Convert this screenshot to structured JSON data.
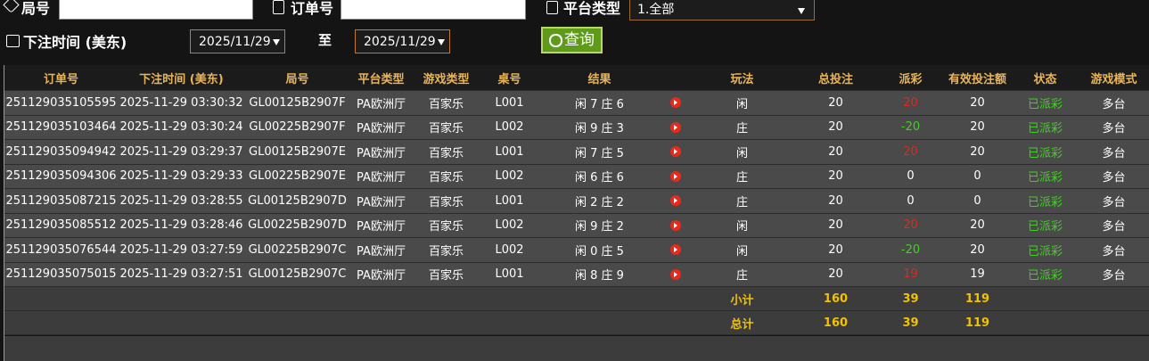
{
  "filters": {
    "round_label": "局号",
    "order_label": "订单号",
    "platform_label": "平台类型",
    "platform_value": "1.全部",
    "time_label": "下注时间 (美东)",
    "date_from": "2025/11/29",
    "to_label": "至",
    "date_to": "2025/11/29",
    "query_button": "查询"
  },
  "table": {
    "headers": [
      "订单号",
      "下注时间 (美东)",
      "局号",
      "平台类型",
      "游戏类型",
      "桌号",
      "结果",
      "玩法",
      "总投注",
      "派彩",
      "有效投注额",
      "状态",
      "游戏模式"
    ],
    "rows": [
      [
        "251129035105595",
        "2025-11-29 03:30:32",
        "GL00125B2907F",
        "PA欧洲厅",
        "百家乐",
        "L001",
        "闲 7 庄 6",
        "闲",
        20,
        20,
        20,
        "已派彩",
        "多台"
      ],
      [
        "251129035103464",
        "2025-11-29 03:30:24",
        "GL00225B2907F",
        "PA欧洲厅",
        "百家乐",
        "L002",
        "闲 9 庄 3",
        "庄",
        20,
        -20,
        20,
        "已派彩",
        "多台"
      ],
      [
        "251129035094942",
        "2025-11-29 03:29:37",
        "GL00125B2907E",
        "PA欧洲厅",
        "百家乐",
        "L001",
        "闲 7 庄 5",
        "闲",
        20,
        20,
        20,
        "已派彩",
        "多台"
      ],
      [
        "251129035094306",
        "2025-11-29 03:29:33",
        "GL00225B2907E",
        "PA欧洲厅",
        "百家乐",
        "L002",
        "闲 6 庄 6",
        "庄",
        20,
        0,
        0,
        "已派彩",
        "多台"
      ],
      [
        "251129035087215",
        "2025-11-29 03:28:55",
        "GL00125B2907D",
        "PA欧洲厅",
        "百家乐",
        "L001",
        "闲 2 庄 2",
        "庄",
        20,
        0,
        0,
        "已派彩",
        "多台"
      ],
      [
        "251129035085512",
        "2025-11-29 03:28:46",
        "GL00225B2907D",
        "PA欧洲厅",
        "百家乐",
        "L002",
        "闲 9 庄 2",
        "闲",
        20,
        20,
        20,
        "已派彩",
        "多台"
      ],
      [
        "251129035076544",
        "2025-11-29 03:27:59",
        "GL00225B2907C",
        "PA欧洲厅",
        "百家乐",
        "L002",
        "闲 0 庄 5",
        "闲",
        20,
        -20,
        20,
        "已派彩",
        "多台"
      ],
      [
        "251129035075015",
        "2025-11-29 03:27:51",
        "GL00125B2907C",
        "PA欧洲厅",
        "百家乐",
        "L001",
        "闲 8 庄 9",
        "庄",
        20,
        19,
        19,
        "已派彩",
        "多台"
      ]
    ],
    "subtotal": {
      "label": "小计",
      "bet": 160,
      "payout": 39,
      "valid": 119
    },
    "total": {
      "label": "总计",
      "bet": 160,
      "payout": 39,
      "valid": 119
    }
  }
}
